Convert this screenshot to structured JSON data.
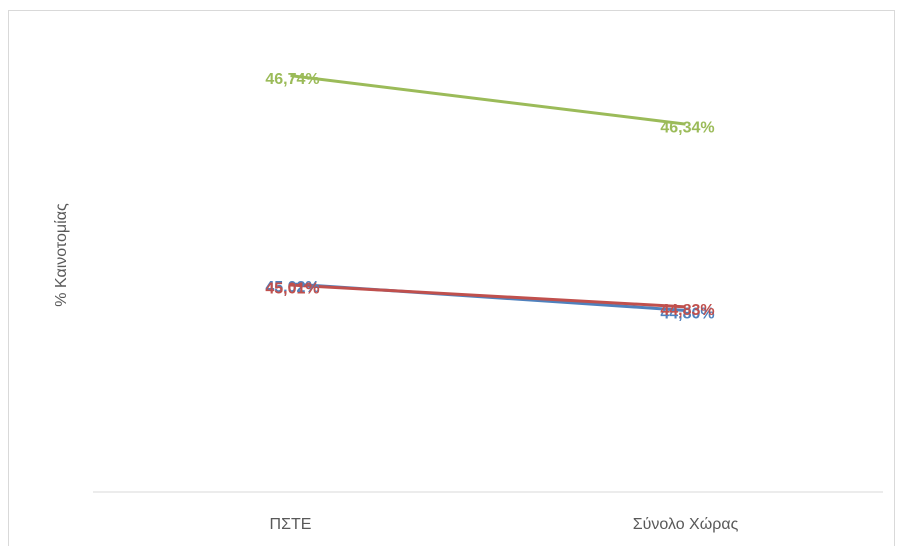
{
  "chart_data": {
    "type": "line",
    "y_label": "% Καινοτομίας",
    "categories": [
      "ΠΣΤΕ",
      "Σύνολο Χώρας"
    ],
    "series": [
      {
        "color": "#9bbb59",
        "values": [
          46.74,
          46.34
        ],
        "value_labels": [
          "46,74%",
          "46,34%"
        ]
      },
      {
        "color": "#4f81bd",
        "values": [
          45.02,
          44.8
        ],
        "value_labels": [
          "45,02%",
          "44,80%"
        ]
      },
      {
        "color": "#c0504d",
        "values": [
          45.01,
          44.83
        ],
        "value_labels": [
          "45,01%",
          "44,83%"
        ]
      }
    ],
    "ylim": [
      43.3,
      47.2
    ]
  }
}
